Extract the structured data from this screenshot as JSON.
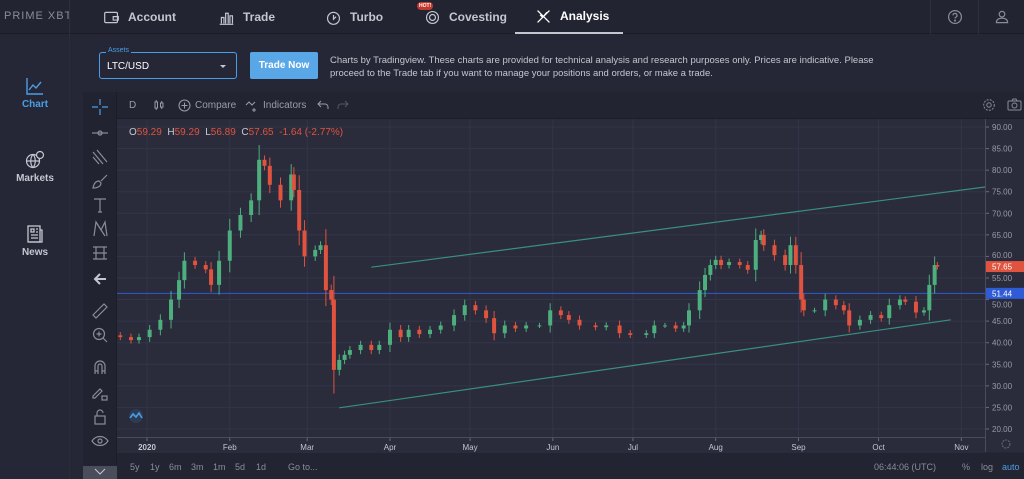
{
  "brand": {
    "logo_text": "PRIME XBT"
  },
  "nav": {
    "items": [
      {
        "label": "Account",
        "icon": "wallet-icon"
      },
      {
        "label": "Trade",
        "icon": "bar-chart-icon"
      },
      {
        "label": "Turbo",
        "icon": "turbo-icon"
      },
      {
        "label": "Covesting",
        "icon": "covesting-icon",
        "badge": "HOT!"
      },
      {
        "label": "Analysis",
        "icon": "analysis-icon",
        "active": true
      }
    ],
    "help_icon": "question-circle-icon",
    "user_icon": "user-icon"
  },
  "sidebar": {
    "items": [
      {
        "label": "Chart",
        "icon": "line-chart-icon",
        "active": true
      },
      {
        "label": "Markets",
        "icon": "globe-dollar-icon"
      },
      {
        "label": "News",
        "icon": "newspaper-icon"
      }
    ]
  },
  "assets": {
    "label": "Assets",
    "value": "LTC/USD"
  },
  "trade_now": "Trade Now",
  "disclaimer": "Charts by Tradingview. These charts are provided for technical analysis and research purposes only. Prices are indicative. Please proceed to the Trade tab if you want to manage your positions and orders, or make a trade.",
  "chart_toolbar": {
    "interval": "D",
    "compare": "Compare",
    "indicators": "Indicators"
  },
  "ohlc": {
    "o_label": "O",
    "o": "59.29",
    "h_label": "H",
    "h": "59.29",
    "l_label": "L",
    "l": "56.89",
    "c_label": "C",
    "c": "57.65",
    "change": "-1.64 (-2.77%)"
  },
  "bottom": {
    "ranges": [
      "5y",
      "1y",
      "6m",
      "3m",
      "1m",
      "5d",
      "1d"
    ],
    "goto": "Go to...",
    "time": "06:44:06 (UTC)",
    "percent": "%",
    "log": "log",
    "auto": "auto"
  },
  "colors": {
    "up": "#4caf7d",
    "down": "#e0533f",
    "accent": "#4a9ee6",
    "last_price": "#e0533f",
    "line_level": "#2f5bd6",
    "trendline": "#3a8f7f"
  },
  "chart_data": {
    "type": "candlestick",
    "symbol": "LTC/USD",
    "ylim": [
      18,
      92
    ],
    "y_ticks": [
      "90.00",
      "85.00",
      "80.00",
      "75.00",
      "70.00",
      "65.00",
      "60.00",
      "55.00",
      "50.00",
      "45.00",
      "40.00",
      "35.00",
      "30.00",
      "25.00",
      "20.00"
    ],
    "x_ticks": [
      "2020",
      "Feb",
      "Mar",
      "Apr",
      "May",
      "Jun",
      "Jul",
      "Aug",
      "Sep",
      "Oct",
      "Nov"
    ],
    "last_price": "57.65",
    "horizontal_level": "51.44",
    "grid": true,
    "trendlines": [
      {
        "from": {
          "date": "2020-03-25",
          "value": 57.5
        },
        "to": {
          "date": "2020-11-10",
          "value": 76.1
        }
      },
      {
        "from": {
          "date": "2020-03-13",
          "value": 24.9
        },
        "to": {
          "date": "2020-10-28",
          "value": 45.3
        }
      }
    ],
    "closes": [
      [
        "2019-12-22",
        41.3
      ],
      [
        "2019-12-26",
        40.6
      ],
      [
        "2019-12-29",
        41.3
      ],
      [
        "2020-01-02",
        43.0
      ],
      [
        "2020-01-06",
        45.3
      ],
      [
        "2020-01-10",
        50.0
      ],
      [
        "2020-01-13",
        54.5
      ],
      [
        "2020-01-15",
        59.0
      ],
      [
        "2020-01-19",
        58.0
      ],
      [
        "2020-01-23",
        57.0
      ],
      [
        "2020-01-25",
        53.4
      ],
      [
        "2020-01-28",
        59.0
      ],
      [
        "2020-02-01",
        66.0
      ],
      [
        "2020-02-05",
        69.6
      ],
      [
        "2020-02-09",
        73.0
      ],
      [
        "2020-02-12",
        82.4
      ],
      [
        "2020-02-14",
        81.0
      ],
      [
        "2020-02-16",
        76.6
      ],
      [
        "2020-02-20",
        73.0
      ],
      [
        "2020-02-24",
        79.0
      ],
      [
        "2020-02-25",
        75.4
      ],
      [
        "2020-02-27",
        66.0
      ],
      [
        "2020-02-29",
        60.0
      ],
      [
        "2020-03-04",
        61.5
      ],
      [
        "2020-03-06",
        62.6
      ],
      [
        "2020-03-08",
        52.2
      ],
      [
        "2020-03-10",
        50.0
      ],
      [
        "2020-03-11",
        33.7
      ],
      [
        "2020-03-13",
        36.0
      ],
      [
        "2020-03-15",
        37.2
      ],
      [
        "2020-03-17",
        38.3
      ],
      [
        "2020-03-21",
        39.5
      ],
      [
        "2020-03-25",
        38.3
      ],
      [
        "2020-03-28",
        39.5
      ],
      [
        "2020-04-01",
        43.0
      ],
      [
        "2020-04-05",
        41.3
      ],
      [
        "2020-04-08",
        43.0
      ],
      [
        "2020-04-12",
        42.0
      ],
      [
        "2020-04-16",
        43.0
      ],
      [
        "2020-04-20",
        44.0
      ],
      [
        "2020-04-25",
        46.4
      ],
      [
        "2020-04-29",
        48.7
      ],
      [
        "2020-05-03",
        47.5
      ],
      [
        "2020-05-07",
        45.7
      ],
      [
        "2020-05-10",
        42.2
      ],
      [
        "2020-05-14",
        44.0
      ],
      [
        "2020-05-18",
        43.3
      ],
      [
        "2020-05-22",
        44.0
      ],
      [
        "2020-05-27",
        44.0
      ],
      [
        "2020-05-31",
        47.5
      ],
      [
        "2020-06-04",
        46.4
      ],
      [
        "2020-06-07",
        45.3
      ],
      [
        "2020-06-11",
        44.0
      ],
      [
        "2020-06-17",
        43.6
      ],
      [
        "2020-06-21",
        44.0
      ],
      [
        "2020-06-26",
        42.2
      ],
      [
        "2020-06-30",
        41.8
      ],
      [
        "2020-07-06",
        42.2
      ],
      [
        "2020-07-09",
        44.0
      ],
      [
        "2020-07-13",
        44.0
      ],
      [
        "2020-07-17",
        43.3
      ],
      [
        "2020-07-20",
        44.0
      ],
      [
        "2020-07-22",
        47.5
      ],
      [
        "2020-07-26",
        52.2
      ],
      [
        "2020-07-28",
        55.7
      ],
      [
        "2020-07-30",
        58.0
      ],
      [
        "2020-08-01",
        59.2
      ],
      [
        "2020-08-03",
        58.0
      ],
      [
        "2020-08-06",
        58.7
      ],
      [
        "2020-08-10",
        58.0
      ],
      [
        "2020-08-13",
        56.9
      ],
      [
        "2020-08-16",
        63.8
      ],
      [
        "2020-08-18",
        65.0
      ],
      [
        "2020-08-19",
        62.6
      ],
      [
        "2020-08-23",
        60.3
      ],
      [
        "2020-08-27",
        58.0
      ],
      [
        "2020-08-29",
        62.6
      ],
      [
        "2020-08-31",
        58.0
      ],
      [
        "2020-09-02",
        50.0
      ],
      [
        "2020-09-03",
        47.5
      ],
      [
        "2020-09-07",
        47.5
      ],
      [
        "2020-09-11",
        50.0
      ],
      [
        "2020-09-15",
        48.7
      ],
      [
        "2020-09-18",
        47.5
      ],
      [
        "2020-09-20",
        44.0
      ],
      [
        "2020-09-24",
        45.3
      ],
      [
        "2020-09-28",
        46.4
      ],
      [
        "2020-10-02",
        45.7
      ],
      [
        "2020-10-05",
        48.7
      ],
      [
        "2020-10-09",
        50.0
      ],
      [
        "2020-10-11",
        49.5
      ],
      [
        "2020-10-15",
        47.0
      ],
      [
        "2020-10-18",
        47.5
      ],
      [
        "2020-10-20",
        53.4
      ],
      [
        "2020-10-22",
        58.0
      ],
      [
        "2020-10-23",
        57.65
      ]
    ]
  }
}
